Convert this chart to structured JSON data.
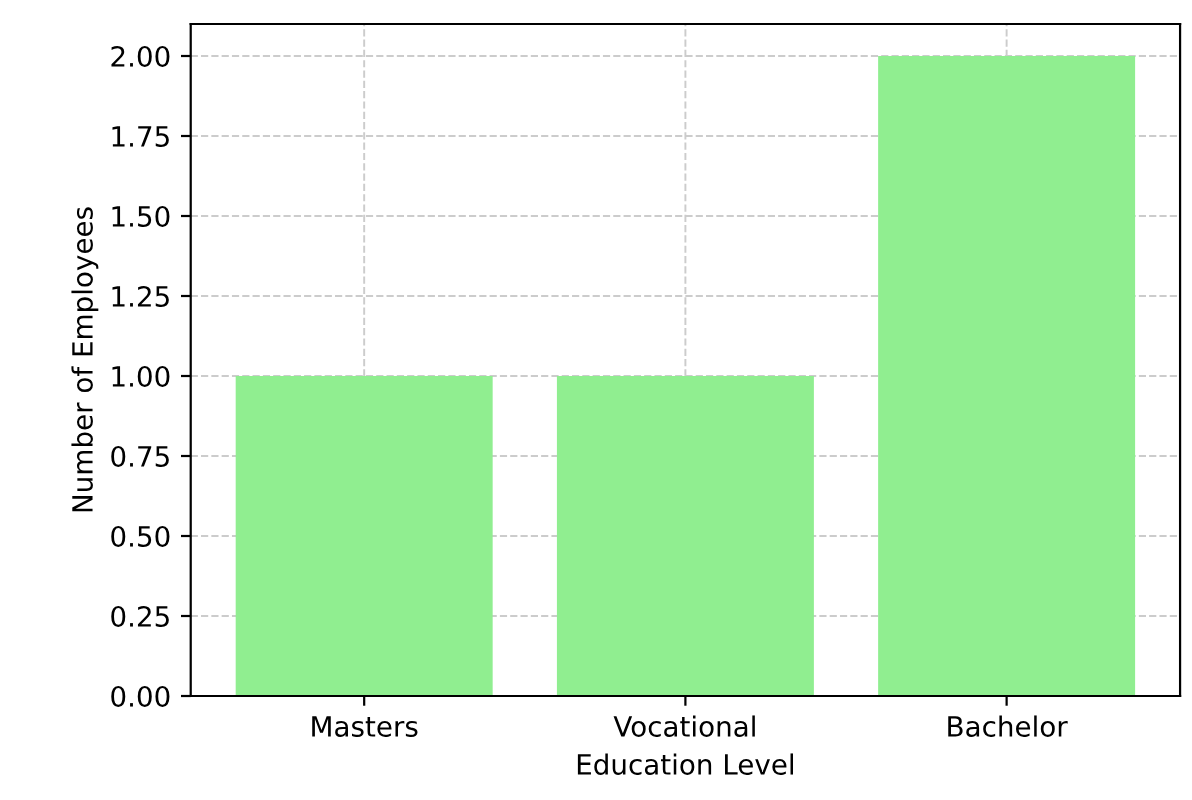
{
  "chart_data": {
    "type": "bar",
    "xlabel": "Education Level",
    "ylabel": "Number of Employees",
    "categories": [
      "Masters",
      "Vocational",
      "Bachelor"
    ],
    "values": [
      1,
      1,
      2
    ],
    "color": "#90ee90",
    "ylim": [
      0,
      2.1
    ],
    "yticks": [
      {
        "value": 0,
        "label": "0.00"
      },
      {
        "value": 0.25,
        "label": "0.25"
      },
      {
        "value": 0.5,
        "label": "0.50"
      },
      {
        "value": 0.75,
        "label": "0.75"
      },
      {
        "value": 1,
        "label": "1.00"
      },
      {
        "value": 1.25,
        "label": "1.25"
      },
      {
        "value": 1.5,
        "label": "1.50"
      },
      {
        "value": 1.75,
        "label": "1.75"
      },
      {
        "value": 2,
        "label": "2.00"
      }
    ],
    "grid": true
  }
}
